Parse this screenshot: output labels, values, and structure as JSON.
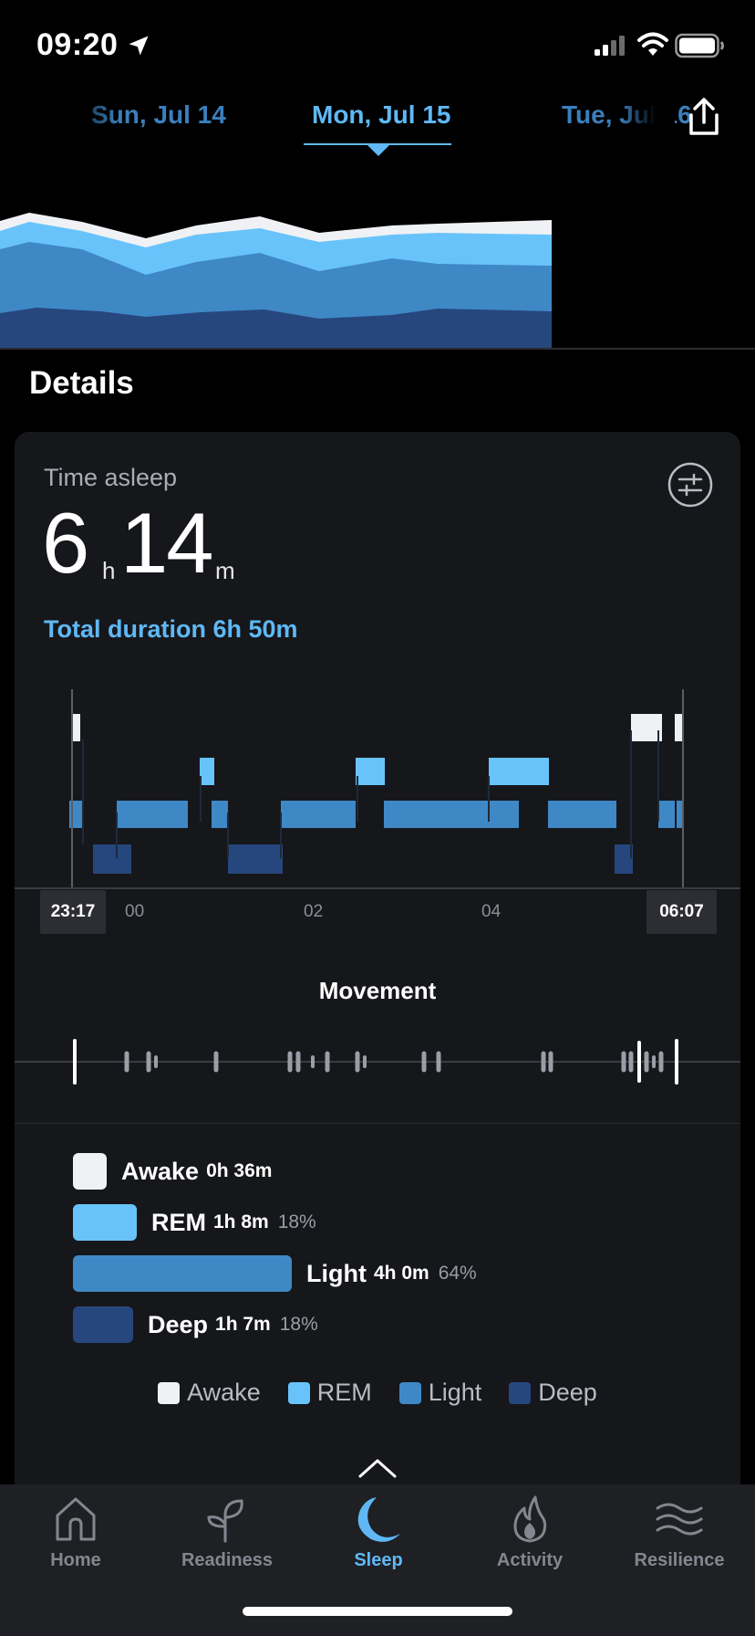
{
  "status": {
    "time": "09:20"
  },
  "dates": {
    "prev": "Sun, Jul 14",
    "current": "Mon, Jul 15",
    "next": "Tue, Jul 16"
  },
  "details": {
    "title": "Details"
  },
  "time_asleep": {
    "label": "Time asleep",
    "hours": "6",
    "hours_unit": "h",
    "minutes": "14",
    "minutes_unit": "m",
    "total_duration": "Total duration 6h 50m"
  },
  "hypnogram": {
    "start": "23:17",
    "end": "06:07",
    "ticks": [
      "00",
      "02",
      "04"
    ]
  },
  "movement": {
    "title": "Movement"
  },
  "stages": [
    {
      "name": "Awake",
      "duration": "0h 36m",
      "percent": "",
      "color": "#f0f1f4"
    },
    {
      "name": "REM",
      "duration": "1h 8m",
      "percent": "18%",
      "color": "#69c3fb"
    },
    {
      "name": "Light",
      "duration": "4h 0m",
      "percent": "64%",
      "color": "#3f88c6"
    },
    {
      "name": "Deep",
      "duration": "1h 7m",
      "percent": "18%",
      "color": "#26477e"
    }
  ],
  "legend": [
    {
      "label": "Awake",
      "color": "#f0f1f4"
    },
    {
      "label": "REM",
      "color": "#69c3fb"
    },
    {
      "label": "Light",
      "color": "#3f88c6"
    },
    {
      "label": "Deep",
      "color": "#26477e"
    }
  ],
  "nav": [
    {
      "label": "Home",
      "icon": "home-icon"
    },
    {
      "label": "Readiness",
      "icon": "sprout-icon"
    },
    {
      "label": "Sleep",
      "icon": "moon-icon"
    },
    {
      "label": "Activity",
      "icon": "flame-icon"
    },
    {
      "label": "Resilience",
      "icon": "waves-icon"
    }
  ]
}
